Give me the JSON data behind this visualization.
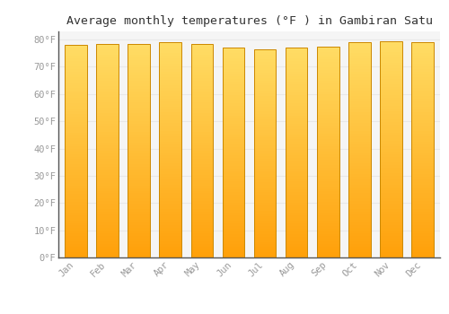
{
  "title": "Average monthly temperatures (°F ) in Gambiran Satu",
  "months": [
    "Jan",
    "Feb",
    "Mar",
    "Apr",
    "May",
    "Jun",
    "Jul",
    "Aug",
    "Sep",
    "Oct",
    "Nov",
    "Dec"
  ],
  "values": [
    78,
    78.5,
    78.5,
    79,
    78.5,
    77,
    76.5,
    77,
    77.5,
    79,
    79.5,
    79
  ],
  "bar_color_bottom": "#FFA500",
  "bar_color_top": "#FFD966",
  "bar_edge_color": "#CC8800",
  "background_color": "#FFFFFF",
  "plot_bg_color": "#F5F5F5",
  "grid_color": "#E8E8E8",
  "yticks": [
    0,
    10,
    20,
    30,
    40,
    50,
    60,
    70,
    80
  ],
  "ylim": [
    0,
    83
  ],
  "title_fontsize": 9.5,
  "tick_fontsize": 7.5,
  "tick_color": "#999999",
  "font_family": "monospace"
}
